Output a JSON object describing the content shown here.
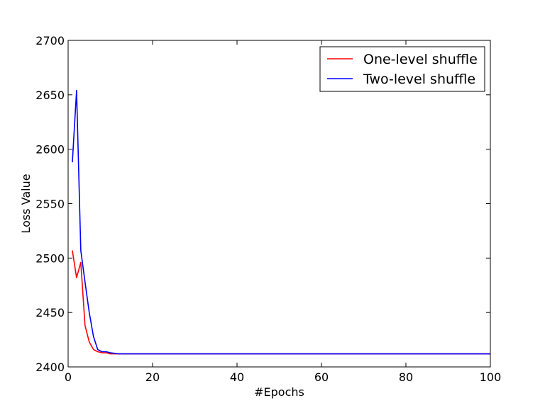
{
  "chart_data": {
    "type": "line",
    "xlabel": "#Epochs",
    "ylabel": "Loss Value",
    "xlim": [
      0,
      100
    ],
    "ylim": [
      2400,
      2700
    ],
    "xticks": [
      0,
      20,
      40,
      60,
      80,
      100
    ],
    "yticks": [
      2400,
      2450,
      2500,
      2550,
      2600,
      2650,
      2700
    ],
    "grid": false,
    "legend_position": "top-right",
    "series": [
      {
        "name": "One-level shuffle",
        "color": "#ff0000",
        "x": [
          1,
          2,
          3,
          4,
          5,
          6,
          7,
          8,
          9,
          10,
          12,
          15,
          20,
          30,
          40,
          50,
          60,
          70,
          80,
          90,
          100
        ],
        "y": [
          2507,
          2482,
          2496,
          2438,
          2423,
          2416,
          2414,
          2413,
          2413,
          2412,
          2412,
          2412,
          2412,
          2412,
          2412,
          2412,
          2412,
          2412,
          2412,
          2412,
          2412
        ]
      },
      {
        "name": "Two-level shuffle",
        "color": "#0000ff",
        "x": [
          1,
          2,
          3,
          4,
          5,
          6,
          7,
          8,
          9,
          10,
          12,
          15,
          20,
          30,
          40,
          50,
          60,
          70,
          80,
          90,
          100
        ],
        "y": [
          2588,
          2654,
          2507,
          2478,
          2450,
          2428,
          2416,
          2414,
          2414,
          2413,
          2412,
          2412,
          2412,
          2412,
          2412,
          2412,
          2412,
          2412,
          2412,
          2412,
          2412
        ]
      }
    ]
  }
}
